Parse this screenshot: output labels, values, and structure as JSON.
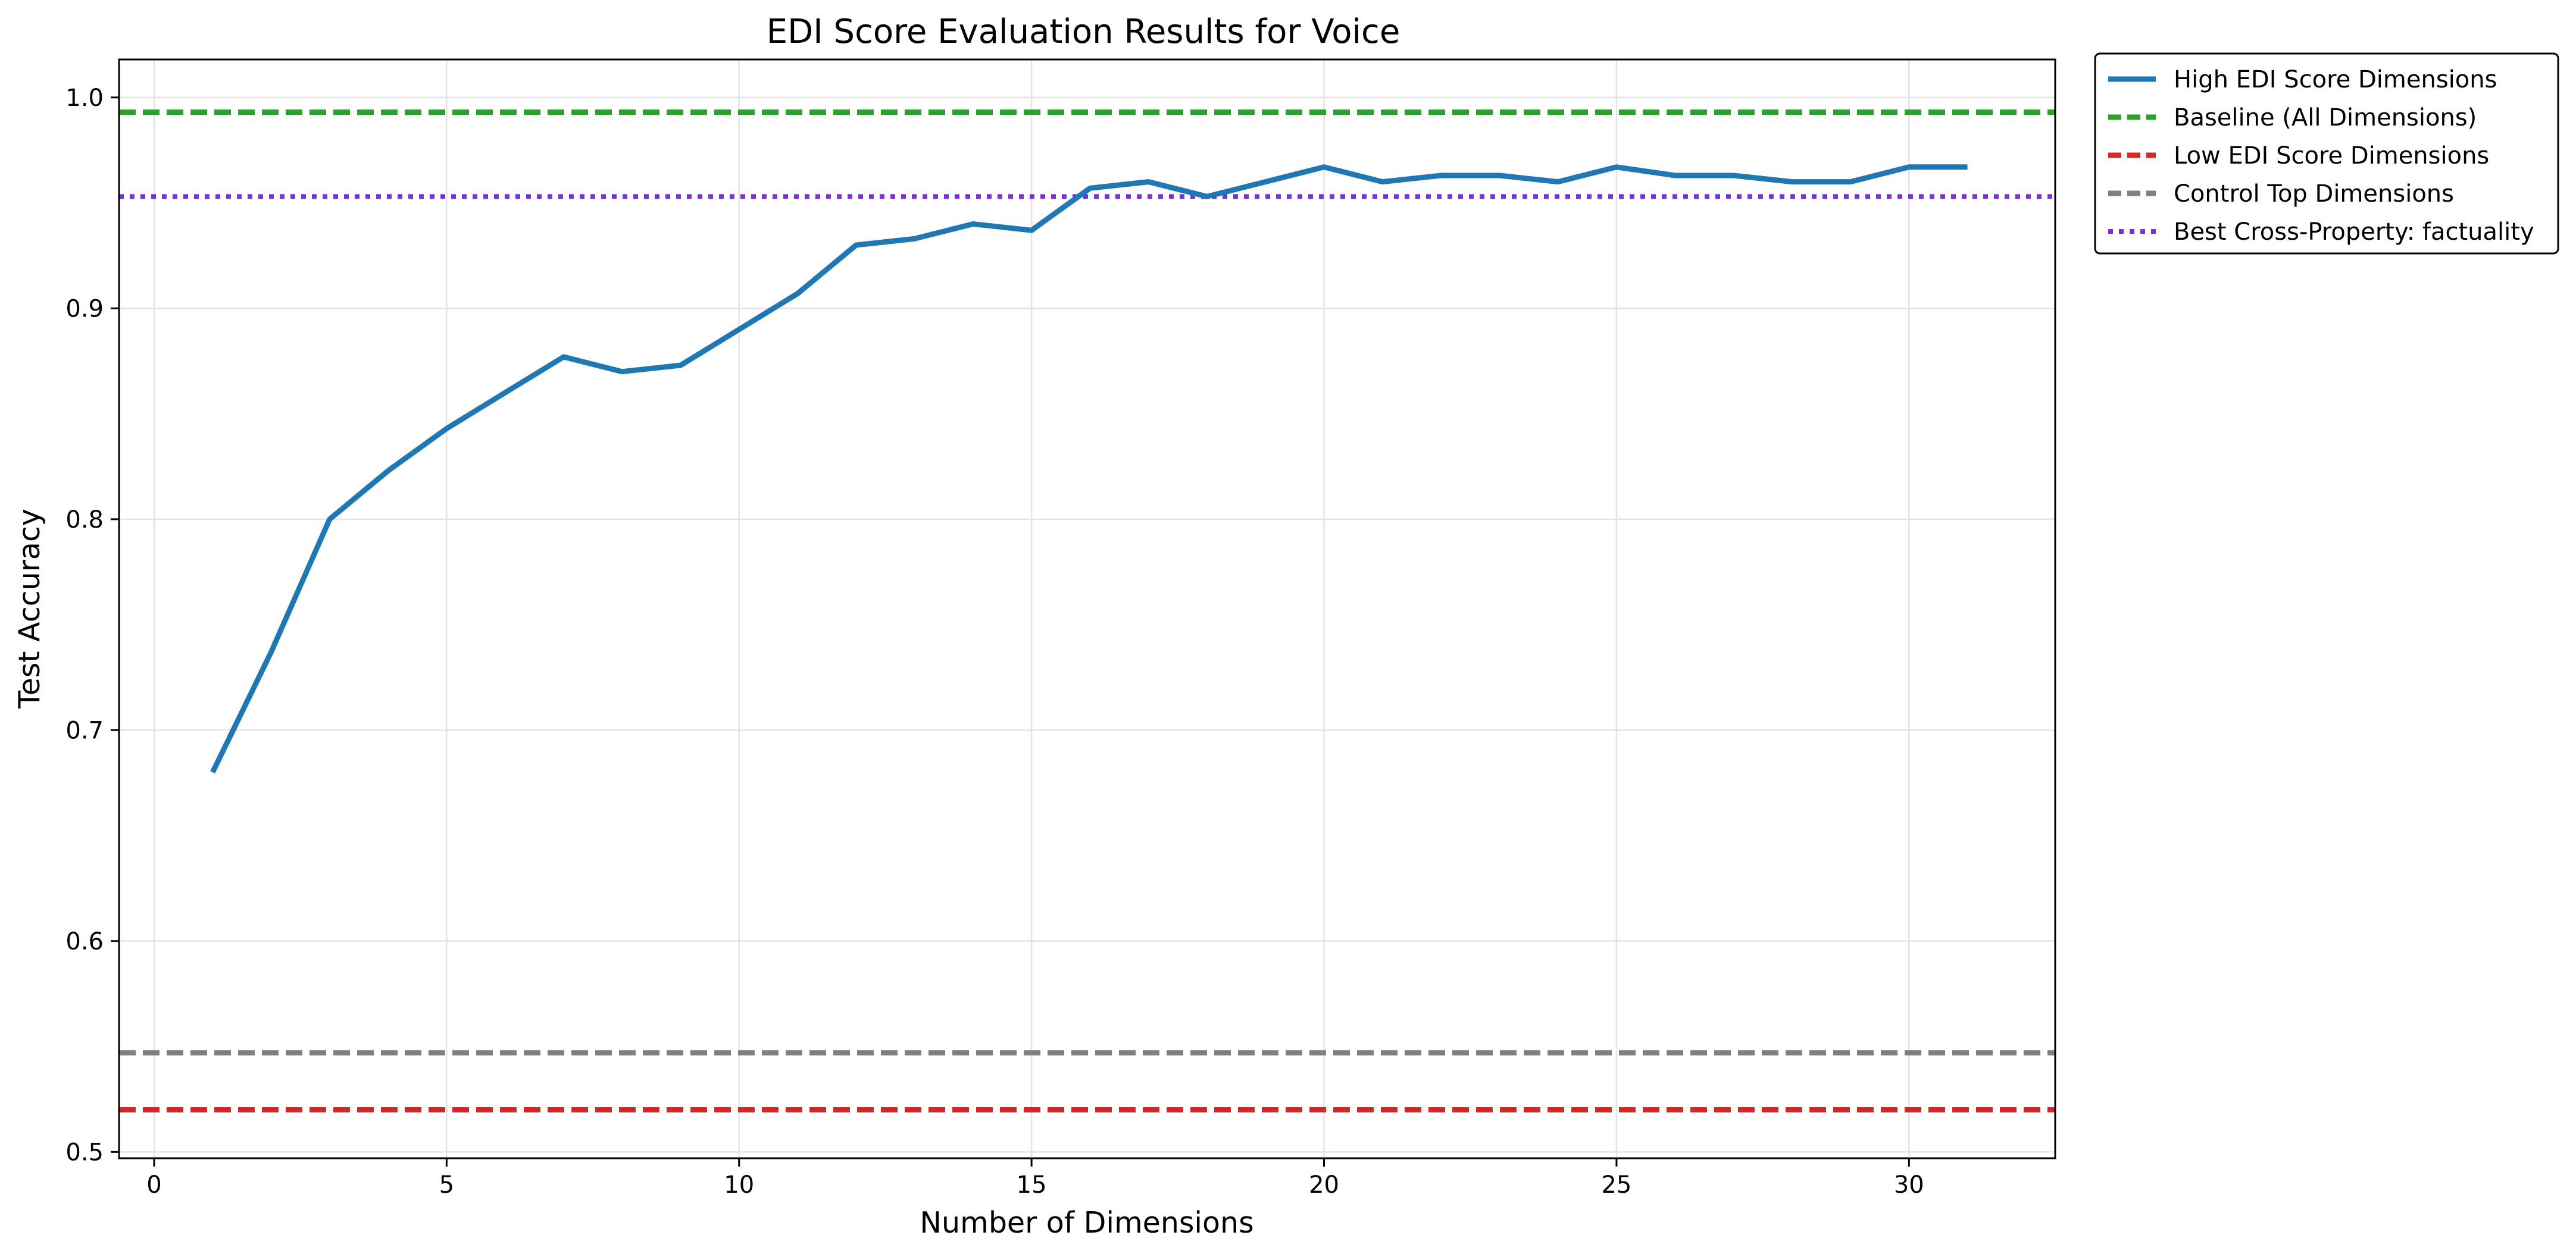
{
  "chart_data": {
    "type": "line",
    "title": "EDI Score Evaluation Results for Voice",
    "xlabel": "Number of Dimensions",
    "ylabel": "Test Accuracy",
    "xlim": [
      -0.6,
      32.5
    ],
    "ylim": [
      0.497,
      1.018
    ],
    "xticks": [
      0,
      5,
      10,
      15,
      20,
      25,
      30
    ],
    "xtick_labels": [
      "0",
      "5",
      "10",
      "15",
      "20",
      "25",
      "30"
    ],
    "yticks": [
      0.5,
      0.6,
      0.7,
      0.8,
      0.9,
      1.0
    ],
    "ytick_labels": [
      "0.5",
      "0.6",
      "0.7",
      "0.8",
      "0.9",
      "1.0"
    ],
    "grid": true,
    "legend_position": "outside-upper-right",
    "series": [
      {
        "name": "High EDI Score Dimensions",
        "style": "solid",
        "color": "#1f77b4",
        "x": [
          1,
          2,
          3,
          4,
          5,
          6,
          7,
          8,
          9,
          10,
          11,
          12,
          13,
          14,
          15,
          16,
          17,
          18,
          19,
          20,
          21,
          22,
          23,
          24,
          25,
          26,
          27,
          28,
          29,
          30,
          31
        ],
        "y": [
          0.68,
          0.737,
          0.8,
          0.823,
          0.843,
          0.86,
          0.877,
          0.87,
          0.873,
          0.89,
          0.907,
          0.93,
          0.933,
          0.94,
          0.937,
          0.957,
          0.96,
          0.953,
          0.96,
          0.967,
          0.96,
          0.963,
          0.963,
          0.96,
          0.967,
          0.963,
          0.963,
          0.96,
          0.96,
          0.967,
          0.967
        ]
      }
    ],
    "reference_lines": [
      {
        "name": "Baseline (All Dimensions)",
        "style": "dashed",
        "color": "#2ca02c",
        "y": 0.993
      },
      {
        "name": "Low EDI Score Dimensions",
        "style": "dashed",
        "color": "#d62728",
        "y": 0.52
      },
      {
        "name": "Control Top Dimensions",
        "style": "dashed",
        "color": "#7f7f7f",
        "y": 0.547
      },
      {
        "name": "Best Cross-Property: factuality",
        "style": "dotted",
        "color": "#7b2fd6",
        "y": 0.953
      }
    ],
    "legend": [
      {
        "name": "High EDI Score Dimensions",
        "style": "solid",
        "color": "#1f77b4"
      },
      {
        "name": "Baseline (All Dimensions)",
        "style": "dashed",
        "color": "#2ca02c"
      },
      {
        "name": "Low EDI Score Dimensions",
        "style": "dashed",
        "color": "#d62728"
      },
      {
        "name": "Control Top Dimensions",
        "style": "dashed",
        "color": "#7f7f7f"
      },
      {
        "name": "Best Cross-Property: factuality",
        "style": "dotted",
        "color": "#7b2fd6"
      }
    ]
  }
}
